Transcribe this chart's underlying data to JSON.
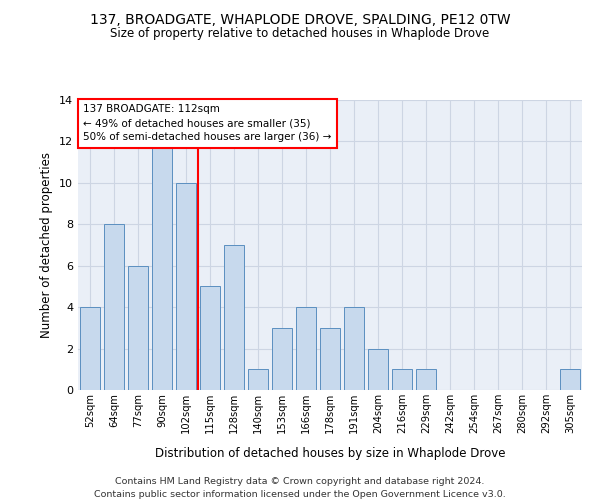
{
  "title": "137, BROADGATE, WHAPLODE DROVE, SPALDING, PE12 0TW",
  "subtitle": "Size of property relative to detached houses in Whaplode Drove",
  "xlabel": "Distribution of detached houses by size in Whaplode Drove",
  "ylabel": "Number of detached properties",
  "bar_labels": [
    "52sqm",
    "64sqm",
    "77sqm",
    "90sqm",
    "102sqm",
    "115sqm",
    "128sqm",
    "140sqm",
    "153sqm",
    "166sqm",
    "178sqm",
    "191sqm",
    "204sqm",
    "216sqm",
    "229sqm",
    "242sqm",
    "254sqm",
    "267sqm",
    "280sqm",
    "292sqm",
    "305sqm"
  ],
  "bar_heights": [
    4,
    8,
    6,
    12,
    10,
    5,
    7,
    1,
    3,
    4,
    3,
    4,
    2,
    1,
    1,
    0,
    0,
    0,
    0,
    0,
    1
  ],
  "bar_color": "#c7d9ed",
  "bar_edge_color": "#5b8fc0",
  "vline_x_index": 4.5,
  "vline_color": "red",
  "annotation_line1": "137 BROADGATE: 112sqm",
  "annotation_line2": "← 49% of detached houses are smaller (35)",
  "annotation_line3": "50% of semi-detached houses are larger (36) →",
  "ylim": [
    0,
    14
  ],
  "yticks": [
    0,
    2,
    4,
    6,
    8,
    10,
    12,
    14
  ],
  "grid_color": "#cdd5e3",
  "background_color": "#eaeff7",
  "footer1": "Contains HM Land Registry data © Crown copyright and database right 2024.",
  "footer2": "Contains public sector information licensed under the Open Government Licence v3.0."
}
